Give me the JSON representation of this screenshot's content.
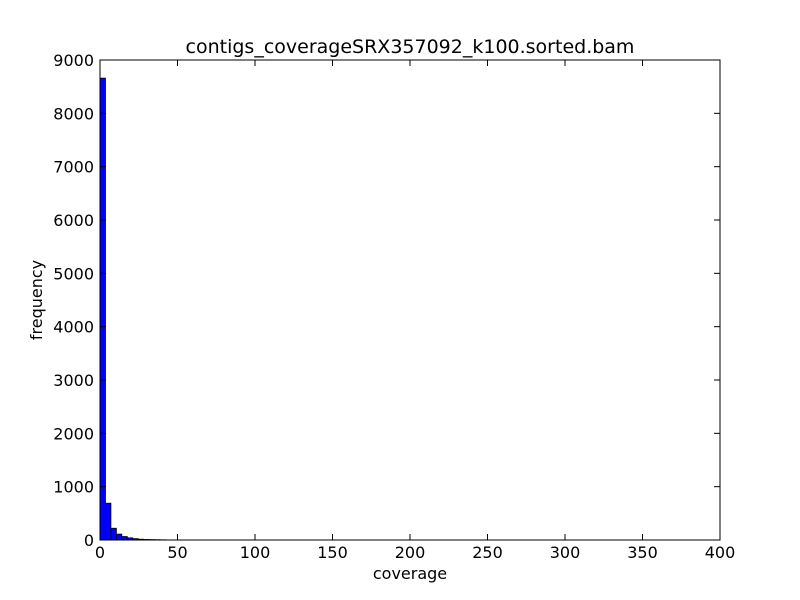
{
  "chart_data": {
    "type": "bar",
    "title": "contigs_coverageSRX357092_k100.sorted.bam",
    "xlabel": "coverage",
    "ylabel": "frequency",
    "xlim": [
      0,
      400
    ],
    "ylim": [
      0,
      9000
    ],
    "xticks": [
      "0",
      "50",
      "100",
      "150",
      "200",
      "250",
      "300",
      "350",
      "400"
    ],
    "yticks": [
      "0",
      "1000",
      "2000",
      "3000",
      "4000",
      "5000",
      "6000",
      "7000",
      "8000",
      "9000"
    ],
    "grid": false,
    "bar_color": "#0000ff",
    "bin_width": 3.52,
    "bins": [
      {
        "x0": 0.0,
        "value": 8660
      },
      {
        "x0": 3.52,
        "value": 690
      },
      {
        "x0": 7.04,
        "value": 220
      },
      {
        "x0": 10.56,
        "value": 110
      },
      {
        "x0": 14.08,
        "value": 65
      },
      {
        "x0": 17.6,
        "value": 40
      },
      {
        "x0": 21.12,
        "value": 25
      },
      {
        "x0": 24.64,
        "value": 15
      },
      {
        "x0": 28.16,
        "value": 10
      },
      {
        "x0": 31.68,
        "value": 8
      },
      {
        "x0": 35.2,
        "value": 6
      },
      {
        "x0": 38.72,
        "value": 4
      },
      {
        "x0": 42.24,
        "value": 2
      },
      {
        "x0": 45.76,
        "value": 1
      },
      {
        "x0": 49.28,
        "value": 1
      },
      {
        "x0": 52.8,
        "value": 1
      }
    ]
  }
}
